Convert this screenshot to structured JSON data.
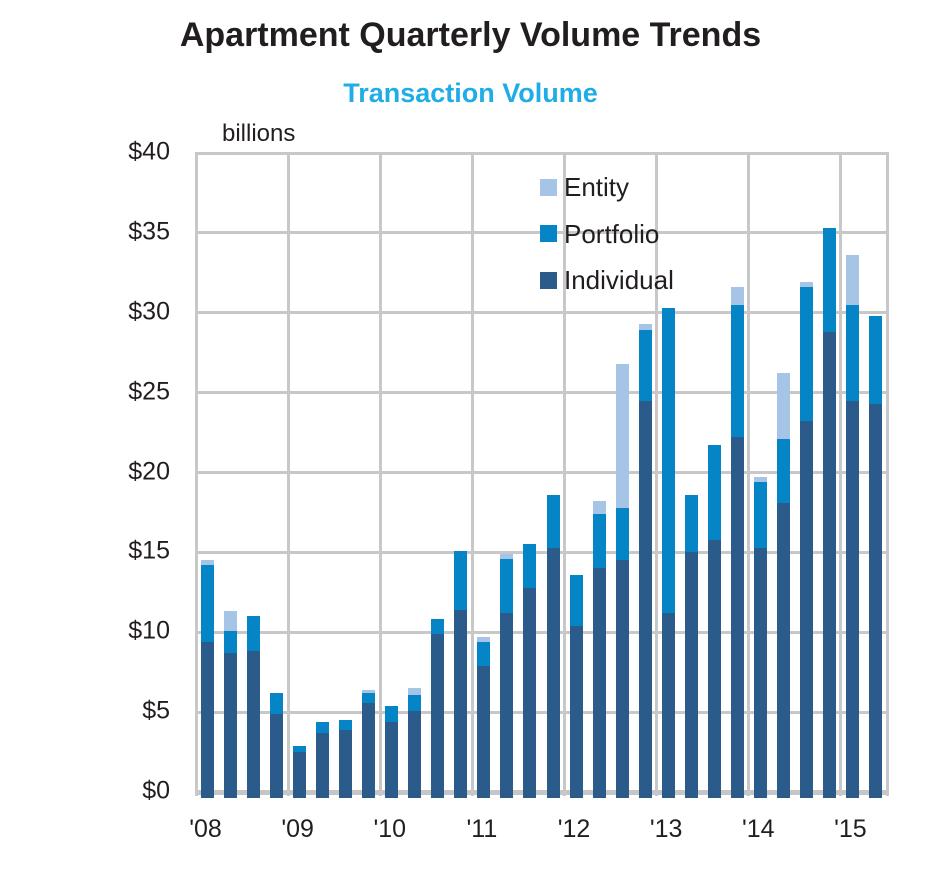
{
  "title": "Apartment Quarterly Volume Trends",
  "subtitle": "Transaction Volume",
  "units_note": "billions",
  "colors": {
    "subtitle": "#20ace6",
    "entity": "#a6c5e6",
    "portfolio": "#0685c6",
    "individual": "#2a5b8a",
    "gridline": "#c8c8c8",
    "text": "#221e1f"
  },
  "legend": [
    {
      "label": "Entity",
      "color": "#a6c5e6"
    },
    {
      "label": "Portfolio",
      "color": "#0685c6"
    },
    {
      "label": "Individual",
      "color": "#2a5b8a"
    }
  ],
  "chart_data": {
    "type": "bar",
    "stacked": true,
    "title": "Apartment Quarterly Volume Trends",
    "subtitle": "Transaction Volume",
    "ylabel": "billions",
    "unit": "USD billions",
    "ylim": [
      0,
      40
    ],
    "y_step": 5,
    "grid": true,
    "legend_position": "top-right-inside",
    "y_tick_labels": [
      "$0",
      "$5",
      "$10",
      "$15",
      "$20",
      "$25",
      "$30",
      "$35",
      "$40"
    ],
    "x_tick_labels": [
      "'08",
      "'09",
      "'10",
      "'11",
      "'12",
      "'13",
      "'14",
      "'15"
    ],
    "quarters_per_year": [
      4,
      4,
      4,
      4,
      4,
      4,
      4,
      2
    ],
    "categories": [
      "'08 Q1",
      "'08 Q2",
      "'08 Q3",
      "'08 Q4",
      "'09 Q1",
      "'09 Q2",
      "'09 Q3",
      "'09 Q4",
      "'10 Q1",
      "'10 Q2",
      "'10 Q3",
      "'10 Q4",
      "'11 Q1",
      "'11 Q2",
      "'11 Q3",
      "'11 Q4",
      "'12 Q1",
      "'12 Q2",
      "'12 Q3",
      "'12 Q4",
      "'13 Q1",
      "'13 Q2",
      "'13 Q3",
      "'13 Q4",
      "'14 Q1",
      "'14 Q2",
      "'14 Q3",
      "'14 Q4",
      "'15 Q1",
      "'15 Q2"
    ],
    "series": [
      {
        "name": "Individual",
        "color": "#2a5b8a",
        "values": [
          9.4,
          8.7,
          8.8,
          4.9,
          2.5,
          3.7,
          3.9,
          5.6,
          4.4,
          5.1,
          9.9,
          11.4,
          7.9,
          11.2,
          12.8,
          15.3,
          10.4,
          14.0,
          14.5,
          24.5,
          11.2,
          15.0,
          15.8,
          22.2,
          15.3,
          18.1,
          23.2,
          28.8,
          24.5,
          24.3
        ]
      },
      {
        "name": "Portfolio",
        "color": "#0685c6",
        "values": [
          4.8,
          1.4,
          2.2,
          1.3,
          0.4,
          0.7,
          0.6,
          0.6,
          1.0,
          1.0,
          0.9,
          3.7,
          1.5,
          3.4,
          2.7,
          3.3,
          3.2,
          3.4,
          3.3,
          4.4,
          19.1,
          3.6,
          5.9,
          8.3,
          4.1,
          4.0,
          8.4,
          6.5,
          6.0,
          5.5
        ]
      },
      {
        "name": "Entity",
        "color": "#a6c5e6",
        "values": [
          0.3,
          1.2,
          0,
          0,
          0,
          0,
          0,
          0.2,
          0,
          0.4,
          0,
          0,
          0.3,
          0.3,
          0,
          0,
          0,
          0.8,
          9.0,
          0.4,
          0,
          0,
          0,
          1.1,
          0.3,
          4.1,
          0.3,
          0,
          3.1,
          0
        ]
      }
    ],
    "totals": [
      14.5,
      11.3,
      11.0,
      6.2,
      2.9,
      4.4,
      4.5,
      6.4,
      5.4,
      6.5,
      10.8,
      15.1,
      9.7,
      14.9,
      15.5,
      18.6,
      13.6,
      18.2,
      26.8,
      29.3,
      30.3,
      18.6,
      21.7,
      31.6,
      19.7,
      26.2,
      31.9,
      35.3,
      33.6,
      29.8
    ]
  }
}
